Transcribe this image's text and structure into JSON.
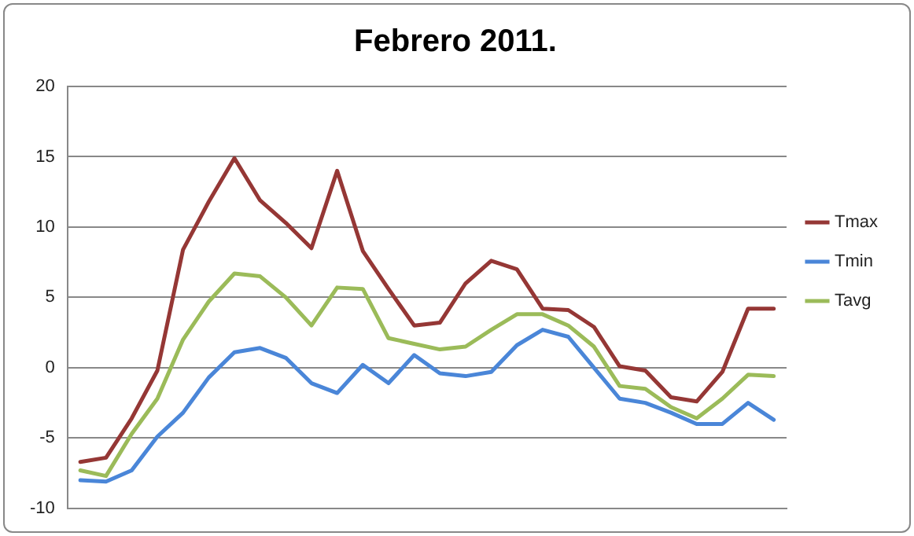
{
  "chart_data": {
    "type": "line",
    "title": "Febrero 2011.",
    "categories": [
      null,
      null,
      null,
      null,
      null,
      null,
      null,
      null,
      null,
      null,
      null,
      null,
      null,
      null,
      null,
      null,
      null,
      null,
      null,
      null,
      null,
      null,
      null,
      null,
      null,
      null,
      null,
      null
    ],
    "series": [
      {
        "name": "Tmax",
        "color": "#953735",
        "values": [
          -6.7,
          -6.4,
          -3.6,
          -0.2,
          8.4,
          11.8,
          14.9,
          11.9,
          10.3,
          8.5,
          14.0,
          8.3,
          5.6,
          3.0,
          3.2,
          6.0,
          7.6,
          7.0,
          4.2,
          4.1,
          2.9,
          0.1,
          -0.2,
          -2.1,
          -2.4,
          -0.3,
          4.2,
          4.2
        ]
      },
      {
        "name": "Tmin",
        "color": "#4a86d8",
        "values": [
          -8.0,
          -8.1,
          -7.3,
          -4.9,
          -3.2,
          -0.7,
          1.1,
          1.4,
          0.7,
          -1.1,
          -1.8,
          0.2,
          -1.1,
          0.9,
          -0.4,
          -0.6,
          -0.3,
          1.6,
          2.7,
          2.2,
          0.0,
          -2.2,
          -2.5,
          -3.2,
          -4.0,
          -4.0,
          -2.5,
          -3.7
        ]
      },
      {
        "name": "Tavg",
        "color": "#9bbb59",
        "values": [
          -7.3,
          -7.7,
          -4.7,
          -2.2,
          2.0,
          4.7,
          6.7,
          6.5,
          5.0,
          3.0,
          5.7,
          5.6,
          2.1,
          1.7,
          1.3,
          1.5,
          2.7,
          3.8,
          3.8,
          3.0,
          1.5,
          -1.3,
          -1.5,
          -2.8,
          -3.6,
          -2.2,
          -0.5,
          -0.6
        ]
      }
    ],
    "ylim": [
      -10,
      20
    ],
    "yticks": [
      -10,
      -5,
      0,
      5,
      10,
      15,
      20
    ],
    "grid": "y",
    "legend": "right",
    "marker": "none",
    "line_style": "solid",
    "tick_labels": "y"
  }
}
